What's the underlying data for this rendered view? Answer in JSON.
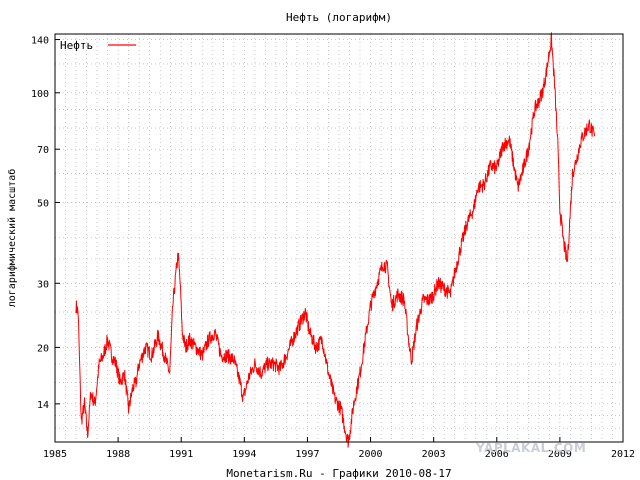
{
  "chart_data": {
    "type": "line",
    "title": "Нефть  (логарифм)",
    "xlabel": "Monetarism.Ru - Графики  2010-08-17",
    "ylabel": "логарифмический масштаб",
    "log_y": true,
    "xlim": [
      1985,
      2012
    ],
    "ylim": [
      11,
      145
    ],
    "xticks": [
      "1985",
      "1988",
      "1991",
      "1994",
      "1997",
      "2000",
      "2003",
      "2006",
      "2009",
      "2012"
    ],
    "yticks": [
      "14",
      "20",
      "30",
      "50",
      "70",
      "100",
      "140"
    ],
    "grid": true,
    "legend_position": "top-left",
    "series": [
      {
        "name": "Нефть",
        "color": "#ff0000",
        "x": [
          1986.0,
          1986.1,
          1986.25,
          1986.4,
          1986.55,
          1986.7,
          1986.9,
          1987.1,
          1987.3,
          1987.5,
          1987.7,
          1987.9,
          1988.1,
          1988.3,
          1988.5,
          1988.7,
          1988.85,
          1989.0,
          1989.3,
          1989.6,
          1989.9,
          1990.2,
          1990.45,
          1990.6,
          1990.75,
          1990.85,
          1990.95,
          1991.05,
          1991.2,
          1991.4,
          1991.7,
          1992.0,
          1992.3,
          1992.6,
          1992.9,
          1993.2,
          1993.5,
          1993.8,
          1993.95,
          1994.2,
          1994.5,
          1994.8,
          1995.1,
          1995.4,
          1995.7,
          1996.0,
          1996.3,
          1996.6,
          1996.9,
          1997.1,
          1997.4,
          1997.7,
          1998.0,
          1998.3,
          1998.6,
          1998.85,
          1998.95,
          1999.2,
          1999.5,
          1999.8,
          2000.0,
          2000.3,
          2000.6,
          2000.8,
          2001.0,
          2001.3,
          2001.6,
          2001.85,
          2001.95,
          2002.2,
          2002.5,
          2002.8,
          2003.0,
          2003.2,
          2003.5,
          2003.8,
          2004.0,
          2004.3,
          2004.6,
          2004.9,
          2005.1,
          2005.4,
          2005.7,
          2006.0,
          2006.3,
          2006.6,
          2006.9,
          2007.0,
          2007.2,
          2007.5,
          2007.8,
          2008.0,
          2008.2,
          2008.4,
          2008.5,
          2008.6,
          2008.75,
          2008.9,
          2009.0,
          2009.15,
          2009.35,
          2009.6,
          2009.8,
          2010.0,
          2010.2,
          2010.4,
          2010.55,
          2010.65
        ],
        "values": [
          26,
          25,
          12.5,
          14,
          11.5,
          15,
          14,
          18,
          19,
          21,
          19,
          18,
          16,
          17,
          13.5,
          15.5,
          16,
          18,
          20,
          19,
          21.5,
          19,
          17,
          26,
          32,
          36,
          30,
          22,
          20,
          21,
          20,
          19,
          21,
          22,
          19,
          19,
          18.5,
          16,
          14.5,
          16.5,
          18,
          17,
          18,
          18,
          17.5,
          19,
          21,
          23,
          25,
          22,
          20,
          21,
          17,
          14.5,
          13.5,
          11.5,
          11,
          14,
          17,
          22,
          26,
          30,
          34,
          33,
          26,
          28,
          27,
          20,
          18.5,
          23,
          27,
          27,
          28,
          30,
          29,
          28,
          32,
          38,
          44,
          48,
          55,
          56,
          63,
          62,
          72,
          74,
          59,
          55,
          60,
          70,
          90,
          95,
          102,
          118,
          130,
          140,
          105,
          72,
          48,
          40,
          34,
          60,
          66,
          74,
          78,
          82,
          78,
          76
        ]
      }
    ]
  },
  "watermark": "YAPLAKAL.COM"
}
